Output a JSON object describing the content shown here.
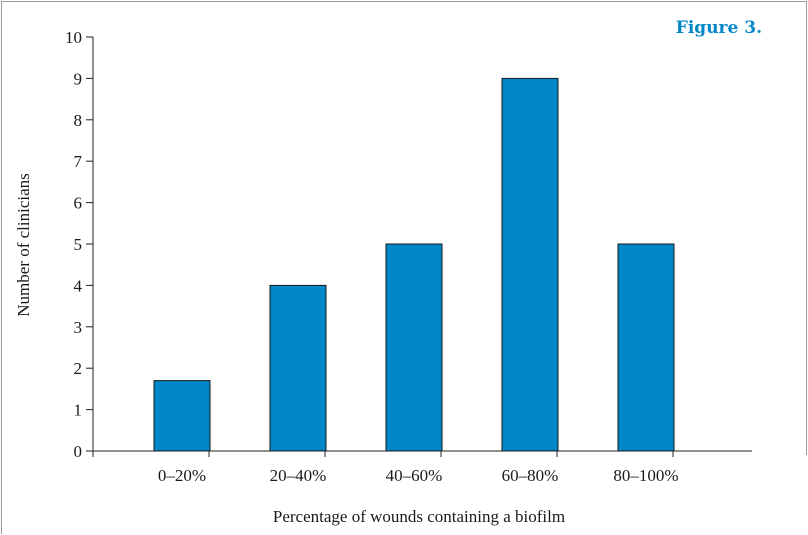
{
  "figure_label": "Figure 3.",
  "colors": {
    "bar": "#0087c8",
    "bar_stroke": "#1a1a1a",
    "axis": "#222222",
    "frame": "#9a9a9a",
    "label": "#0087c8",
    "text": "#1a1a1a"
  },
  "chart_data": {
    "type": "bar",
    "title": "",
    "categories": [
      "0–20%",
      "20–40%",
      "40–60%",
      "60–80%",
      "80–100%"
    ],
    "values": [
      1.7,
      4,
      5,
      9,
      5
    ],
    "xlabel": "Percentage of wounds containing a biofilm",
    "ylabel": "Number of clinicians",
    "ylim": [
      0,
      10
    ],
    "yticks": [
      0,
      1,
      2,
      3,
      4,
      5,
      6,
      7,
      8,
      9,
      10
    ],
    "grid": false,
    "legend": "none"
  }
}
